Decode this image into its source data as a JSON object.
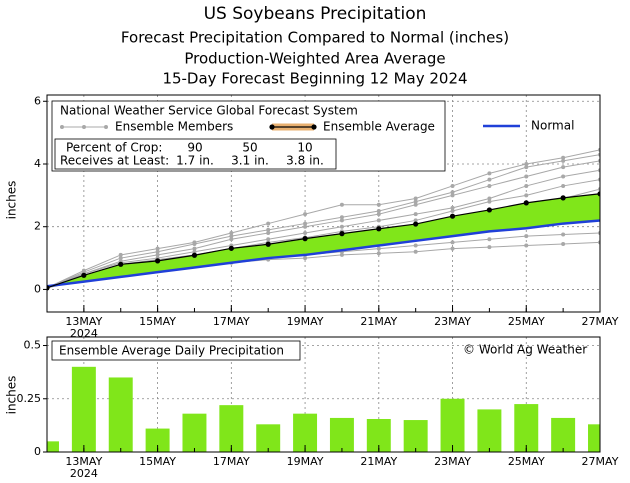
{
  "chart_data": [
    {
      "type": "line",
      "title": "US Soybeans Precipitation",
      "subtitles": [
        "Forecast Precipitation Compared to Normal (inches)",
        "Production-Weighted Area Average",
        "15-Day Forecast Beginning 12 May 2024"
      ],
      "source": "National Weather Service Global Forecast System",
      "y_label": "inches",
      "x": [
        "2024-05-12",
        "2024-05-13",
        "2024-05-14",
        "2024-05-15",
        "2024-05-16",
        "2024-05-17",
        "2024-05-18",
        "2024-05-19",
        "2024-05-20",
        "2024-05-21",
        "2024-05-22",
        "2024-05-23",
        "2024-05-24",
        "2024-05-25",
        "2024-05-26",
        "2024-05-27"
      ],
      "members_name": "Ensemble Members",
      "members_color": "#a8a8a8",
      "members": [
        [
          0.05,
          0.6,
          1.1,
          1.3,
          1.5,
          1.8,
          2.1,
          2.4,
          2.7,
          2.7,
          2.9,
          3.3,
          3.7,
          4.0,
          4.2,
          4.45
        ],
        [
          0.05,
          0.55,
          1.0,
          1.2,
          1.45,
          1.7,
          1.9,
          2.1,
          2.3,
          2.5,
          2.8,
          3.1,
          3.5,
          3.9,
          4.1,
          4.3
        ],
        [
          0.05,
          0.5,
          0.9,
          1.1,
          1.3,
          1.6,
          1.8,
          2.0,
          2.2,
          2.4,
          2.7,
          3.0,
          3.3,
          3.6,
          3.9,
          4.1
        ],
        [
          0.05,
          0.5,
          0.85,
          1.0,
          1.2,
          1.4,
          1.6,
          1.8,
          2.0,
          2.2,
          2.4,
          2.6,
          2.9,
          3.3,
          3.6,
          3.8
        ],
        [
          0.05,
          0.45,
          0.8,
          0.95,
          1.1,
          1.3,
          1.5,
          1.65,
          1.85,
          2.0,
          2.2,
          2.5,
          2.8,
          3.0,
          3.3,
          3.5
        ],
        [
          0.05,
          0.4,
          0.75,
          0.9,
          1.05,
          1.25,
          1.4,
          1.55,
          1.7,
          1.85,
          2.0,
          2.2,
          2.5,
          2.7,
          2.9,
          3.2
        ],
        [
          0.05,
          0.4,
          0.7,
          0.85,
          1.0,
          1.2,
          1.35,
          1.5,
          1.6,
          1.75,
          1.9,
          2.05,
          2.3,
          2.5,
          2.7,
          2.9
        ],
        [
          0.05,
          0.35,
          0.65,
          0.75,
          0.9,
          1.05,
          1.15,
          1.3,
          1.45,
          1.6,
          1.75,
          1.9,
          2.05,
          2.2,
          2.4,
          2.6
        ],
        [
          0.05,
          0.35,
          0.6,
          0.7,
          0.8,
          0.9,
          1.0,
          1.1,
          1.2,
          1.3,
          1.4,
          1.5,
          1.6,
          1.7,
          1.75,
          1.8
        ],
        [
          0.05,
          0.3,
          0.55,
          0.65,
          0.75,
          0.85,
          0.95,
          1.0,
          1.1,
          1.15,
          1.2,
          1.3,
          1.35,
          1.4,
          1.45,
          1.5
        ]
      ],
      "series": [
        {
          "name": "Ensemble Average",
          "color": "#000000",
          "legend_color": "#e8b070",
          "values": [
            0.05,
            0.45,
            0.8,
            0.91,
            1.09,
            1.31,
            1.44,
            1.62,
            1.78,
            1.935,
            2.085,
            2.335,
            2.535,
            2.76,
            2.92,
            3.05
          ]
        },
        {
          "name": "Normal",
          "color": "#2040d8",
          "values": [
            0.1,
            0.25,
            0.4,
            0.55,
            0.7,
            0.85,
            1.0,
            1.1,
            1.25,
            1.4,
            1.55,
            1.7,
            1.85,
            1.95,
            2.1,
            2.2
          ]
        }
      ],
      "fill_color": "#80e61a",
      "xlim": [
        "2024-05-12",
        "2024-05-27"
      ],
      "ylim": [
        -0.72,
        6.2
      ],
      "yticks": [
        0,
        2,
        4,
        6
      ],
      "xticks": [
        {
          "value": "2024-05-13",
          "label": "13MAY"
        },
        {
          "value": "2024-05-15",
          "label": "15MAY"
        },
        {
          "value": "2024-05-17",
          "label": "17MAY"
        },
        {
          "value": "2024-05-19",
          "label": "19MAY"
        },
        {
          "value": "2024-05-21",
          "label": "21MAY"
        },
        {
          "value": "2024-05-23",
          "label": "23MAY"
        },
        {
          "value": "2024-05-25",
          "label": "25MAY"
        },
        {
          "value": "2024-05-27",
          "label": "27MAY"
        }
      ],
      "x_year_label": "2024",
      "grid": true,
      "crop_table": {
        "percent_label": "Percent of Crop:",
        "percents": [
          90,
          50,
          10
        ],
        "amount_label": "Receives at Least:",
        "amounts": [
          "1.7 in.",
          "3.1 in.",
          "3.8 in."
        ]
      }
    },
    {
      "type": "bar",
      "title": "Ensemble Average Daily Precipitation",
      "credit": "© World Ag Weather",
      "y_label": "inches",
      "x": [
        "2024-05-12",
        "2024-05-13",
        "2024-05-14",
        "2024-05-15",
        "2024-05-16",
        "2024-05-17",
        "2024-05-18",
        "2024-05-19",
        "2024-05-20",
        "2024-05-21",
        "2024-05-22",
        "2024-05-23",
        "2024-05-24",
        "2024-05-25",
        "2024-05-26",
        "2024-05-27"
      ],
      "values": [
        0.05,
        0.4,
        0.35,
        0.11,
        0.18,
        0.22,
        0.13,
        0.18,
        0.16,
        0.155,
        0.15,
        0.25,
        0.2,
        0.225,
        0.16,
        0.13
      ],
      "color": "#80e61a",
      "xlim": [
        "2024-05-12",
        "2024-05-27"
      ],
      "ylim": [
        0,
        0.54
      ],
      "yticks": [
        0,
        0.25,
        0.5
      ],
      "xticks": [
        {
          "value": "2024-05-13",
          "label": "13MAY"
        },
        {
          "value": "2024-05-15",
          "label": "15MAY"
        },
        {
          "value": "2024-05-17",
          "label": "17MAY"
        },
        {
          "value": "2024-05-19",
          "label": "19MAY"
        },
        {
          "value": "2024-05-21",
          "label": "21MAY"
        },
        {
          "value": "2024-05-23",
          "label": "23MAY"
        },
        {
          "value": "2024-05-25",
          "label": "25MAY"
        },
        {
          "value": "2024-05-27",
          "label": "27MAY"
        }
      ],
      "x_year_label": "2024",
      "grid": true
    }
  ]
}
